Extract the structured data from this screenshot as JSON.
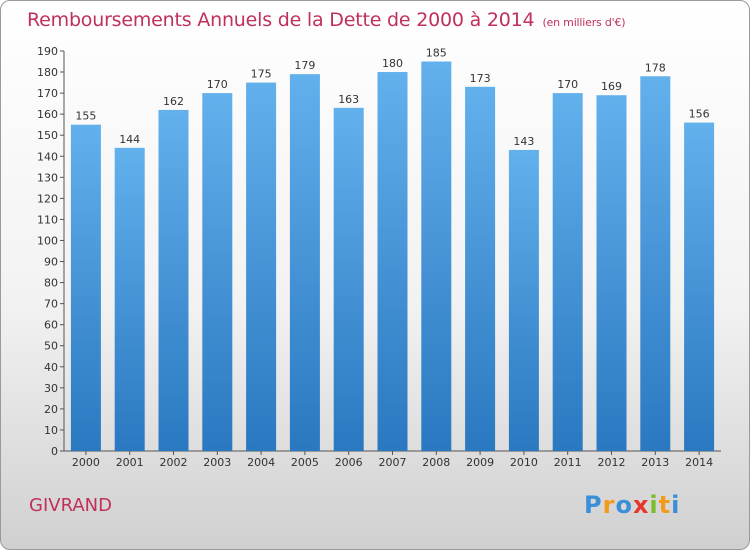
{
  "header": {
    "title": "Remboursements Annuels de la Dette de 2000 à 2014",
    "unit": "(en milliers d'€)"
  },
  "footer": {
    "town": "GIVRAND",
    "logo": "Proxiti"
  },
  "chart_data": {
    "type": "bar",
    "title": "Remboursements Annuels de la Dette de 2000 à 2014",
    "subtitle": "(en milliers d'€)",
    "xlabel": "",
    "ylabel": "",
    "categories": [
      "2000",
      "2001",
      "2002",
      "2003",
      "2004",
      "2005",
      "2006",
      "2007",
      "2008",
      "2009",
      "2010",
      "2011",
      "2012",
      "2013",
      "2014"
    ],
    "values": [
      155,
      144,
      162,
      170,
      175,
      179,
      163,
      180,
      185,
      173,
      143,
      170,
      169,
      178,
      156
    ],
    "ylim": [
      0,
      190
    ],
    "ytick_step": 10,
    "grid": false,
    "bar_color": "#3d8fd6",
    "bar_color_light": "#5faeea"
  }
}
